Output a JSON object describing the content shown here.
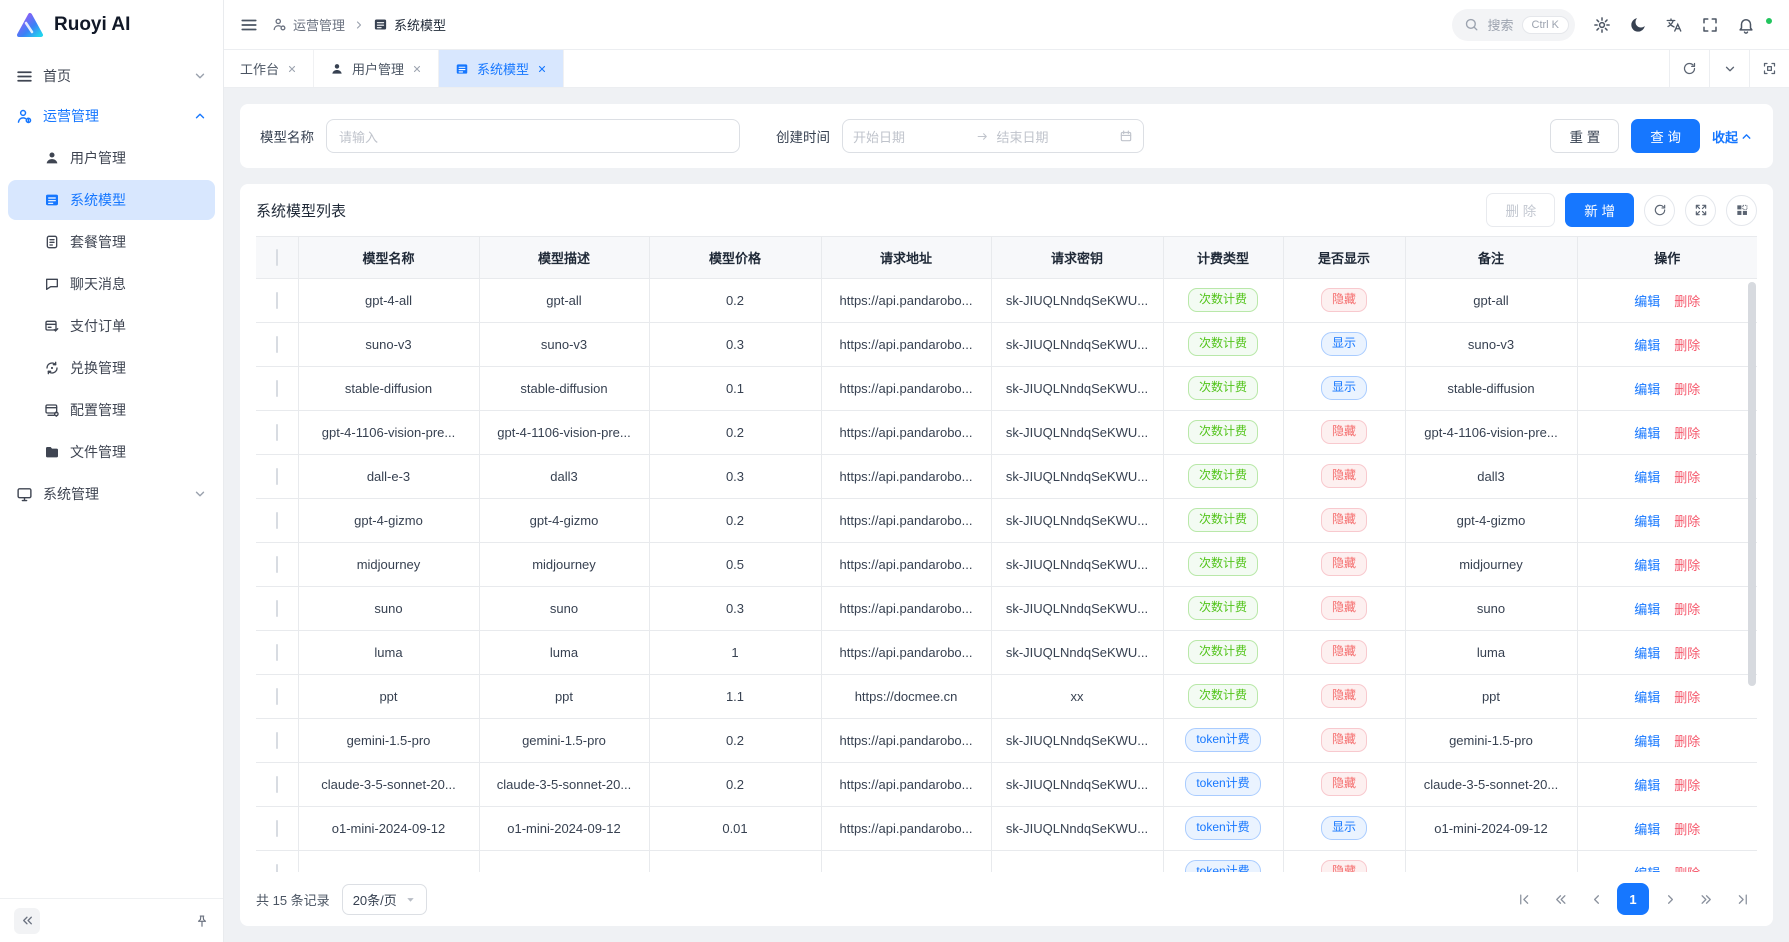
{
  "colors": {
    "primary": "#1677ff",
    "active_bg": "#d8e7fe",
    "badge_green_text": "#52c41a",
    "badge_blue_text": "#1677ff",
    "badge_red_text": "#f56c6c",
    "danger_link": "#f5576b"
  },
  "brand": {
    "name": "Ruoyi AI"
  },
  "sidebar": {
    "home": {
      "label": "首页"
    },
    "section": {
      "label": "运营管理"
    },
    "items": [
      {
        "label": "用户管理"
      },
      {
        "label": "系统模型"
      },
      {
        "label": "套餐管理"
      },
      {
        "label": "聊天消息"
      },
      {
        "label": "支付订单"
      },
      {
        "label": "兑换管理"
      },
      {
        "label": "配置管理"
      },
      {
        "label": "文件管理"
      }
    ],
    "system": {
      "label": "系统管理"
    }
  },
  "header": {
    "breadcrumb": {
      "first": "运营管理",
      "second": "系统模型"
    },
    "search": {
      "placeholder": "搜索",
      "shortcut": "Ctrl K"
    },
    "icons": [
      "settings-gear",
      "theme-moon",
      "language-translate",
      "fullscreen-brackets",
      "notification-bell",
      "user-avatar"
    ]
  },
  "tabs": [
    {
      "label": "工作台"
    },
    {
      "label": "用户管理"
    },
    {
      "label": "系统模型"
    }
  ],
  "filter": {
    "name_label": "模型名称",
    "name_placeholder": "请输入",
    "date_label": "创建时间",
    "date_start_placeholder": "开始日期",
    "date_end_placeholder": "结束日期",
    "reset_label": "重 置",
    "search_label": "查 询",
    "collapse_label": "收起"
  },
  "table": {
    "title": "系统模型列表",
    "delete_label": "删 除",
    "add_label": "新 增",
    "columns": [
      "模型名称",
      "模型描述",
      "模型价格",
      "请求地址",
      "请求密钥",
      "计费类型",
      "是否显示",
      "备注",
      "操作"
    ],
    "edit_label": "编辑",
    "del_label": "删除",
    "rows": [
      {
        "name": "gpt-4-all",
        "desc": "gpt-all",
        "price": "0.2",
        "url": "https://api.pandarobo...",
        "key": "sk-JIUQLNndqSeKWU...",
        "billing": "次数计费",
        "show": "隐藏",
        "remark": "gpt-all"
      },
      {
        "name": "suno-v3",
        "desc": "suno-v3",
        "price": "0.3",
        "url": "https://api.pandarobo...",
        "key": "sk-JIUQLNndqSeKWU...",
        "billing": "次数计费",
        "show": "显示",
        "remark": "suno-v3"
      },
      {
        "name": "stable-diffusion",
        "desc": "stable-diffusion",
        "price": "0.1",
        "url": "https://api.pandarobo...",
        "key": "sk-JIUQLNndqSeKWU...",
        "billing": "次数计费",
        "show": "显示",
        "remark": "stable-diffusion"
      },
      {
        "name": "gpt-4-1106-vision-pre...",
        "desc": "gpt-4-1106-vision-pre...",
        "price": "0.2",
        "url": "https://api.pandarobo...",
        "key": "sk-JIUQLNndqSeKWU...",
        "billing": "次数计费",
        "show": "隐藏",
        "remark": "gpt-4-1106-vision-pre..."
      },
      {
        "name": "dall-e-3",
        "desc": "dall3",
        "price": "0.3",
        "url": "https://api.pandarobo...",
        "key": "sk-JIUQLNndqSeKWU...",
        "billing": "次数计费",
        "show": "隐藏",
        "remark": "dall3"
      },
      {
        "name": "gpt-4-gizmo",
        "desc": "gpt-4-gizmo",
        "price": "0.2",
        "url": "https://api.pandarobo...",
        "key": "sk-JIUQLNndqSeKWU...",
        "billing": "次数计费",
        "show": "隐藏",
        "remark": "gpt-4-gizmo"
      },
      {
        "name": "midjourney",
        "desc": "midjourney",
        "price": "0.5",
        "url": "https://api.pandarobo...",
        "key": "sk-JIUQLNndqSeKWU...",
        "billing": "次数计费",
        "show": "隐藏",
        "remark": "midjourney"
      },
      {
        "name": "suno",
        "desc": "suno",
        "price": "0.3",
        "url": "https://api.pandarobo...",
        "key": "sk-JIUQLNndqSeKWU...",
        "billing": "次数计费",
        "show": "隐藏",
        "remark": "suno"
      },
      {
        "name": "luma",
        "desc": "luma",
        "price": "1",
        "url": "https://api.pandarobo...",
        "key": "sk-JIUQLNndqSeKWU...",
        "billing": "次数计费",
        "show": "隐藏",
        "remark": "luma"
      },
      {
        "name": "ppt",
        "desc": "ppt",
        "price": "1.1",
        "url": "https://docmee.cn",
        "key": "xx",
        "billing": "次数计费",
        "show": "隐藏",
        "remark": "ppt"
      },
      {
        "name": "gemini-1.5-pro",
        "desc": "gemini-1.5-pro",
        "price": "0.2",
        "url": "https://api.pandarobo...",
        "key": "sk-JIUQLNndqSeKWU...",
        "billing": "token计费",
        "show": "隐藏",
        "remark": "gemini-1.5-pro"
      },
      {
        "name": "claude-3-5-sonnet-20...",
        "desc": "claude-3-5-sonnet-20...",
        "price": "0.2",
        "url": "https://api.pandarobo...",
        "key": "sk-JIUQLNndqSeKWU...",
        "billing": "token计费",
        "show": "隐藏",
        "remark": "claude-3-5-sonnet-20..."
      },
      {
        "name": "o1-mini-2024-09-12",
        "desc": "o1-mini-2024-09-12",
        "price": "0.01",
        "url": "https://api.pandarobo...",
        "key": "sk-JIUQLNndqSeKWU...",
        "billing": "token计费",
        "show": "显示",
        "remark": "o1-mini-2024-09-12"
      },
      {
        "name": "",
        "desc": "",
        "price": "",
        "url": "",
        "key": "",
        "billing": "token计费",
        "show": "隐藏",
        "remark": ""
      }
    ]
  },
  "pagination": {
    "total_text": "共 15 条记录",
    "page_size": "20条/页",
    "current_page": "1"
  }
}
